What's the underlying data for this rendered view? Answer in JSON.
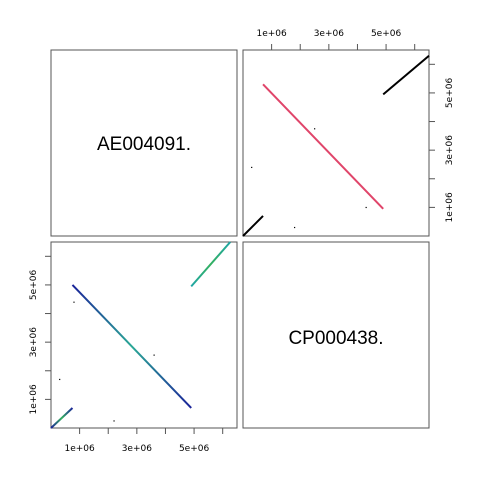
{
  "chart_data": {
    "type": "scatter",
    "layout": "pairwise dot-plot matrix (2x2)",
    "genomes": [
      "AE004091.",
      "CP000438."
    ],
    "genome_lengths": [
      6264404,
      6537648
    ],
    "axis": {
      "range": [
        0,
        6500000
      ],
      "tick_values": [
        1000000,
        2000000,
        3000000,
        4000000,
        5000000,
        6000000
      ],
      "tick_labels_top_bottom": [
        "1e+06",
        "3e+06",
        "5e+06"
      ],
      "tick_labels_left_right": [
        "1e+06",
        "3e+06",
        "5e+06"
      ]
    },
    "upper_panel": {
      "x_genome": "CP000438.",
      "y_genome": "AE004091.",
      "segments": [
        {
          "x": [
            700000,
            4900000
          ],
          "y": [
            5300000,
            950000
          ],
          "strand": "reverse",
          "color": "#e0456a"
        },
        {
          "x": [
            0,
            700000
          ],
          "y": [
            0,
            700000
          ],
          "strand": "forward",
          "color": "#000000"
        },
        {
          "x": [
            4900000,
            6500000
          ],
          "y": [
            4950000,
            6300000
          ],
          "strand": "forward",
          "color": "#000000"
        }
      ],
      "points": [
        {
          "x": 2500000,
          "y": 3750000
        },
        {
          "x": 300000,
          "y": 2400000
        },
        {
          "x": 1800000,
          "y": 300000
        },
        {
          "x": 4300000,
          "y": 1000000
        }
      ]
    },
    "lower_panel": {
      "x_genome": "AE004091.",
      "y_genome": "CP000438.",
      "segments": [
        {
          "x": [
            750000,
            4900000
          ],
          "y": [
            5000000,
            700000
          ],
          "strand": "reverse",
          "color_start": "#1a2299",
          "color_end": "#2aa896",
          "dominant_color": "#1fa6a6"
        },
        {
          "x": [
            0,
            750000
          ],
          "y": [
            0,
            700000
          ],
          "strand": "forward",
          "color_start": "#1a2299",
          "color_end": "#33b060"
        },
        {
          "x": [
            4900000,
            6264404
          ],
          "y": [
            4950000,
            6500000
          ],
          "strand": "forward",
          "color_start": "#1fa6a6",
          "color_end": "#33b060"
        }
      ],
      "points": [
        {
          "x": 800000,
          "y": 4400000
        },
        {
          "x": 3600000,
          "y": 2550000
        },
        {
          "x": 2200000,
          "y": 250000
        },
        {
          "x": 300000,
          "y": 1700000
        }
      ]
    },
    "colors": {
      "frame": "#555555",
      "upper_main": "#e0456a",
      "lower_blue": "#1a2299",
      "lower_teal": "#1fa6a6",
      "lower_green": "#33b060",
      "diag_black": "#000000"
    }
  }
}
